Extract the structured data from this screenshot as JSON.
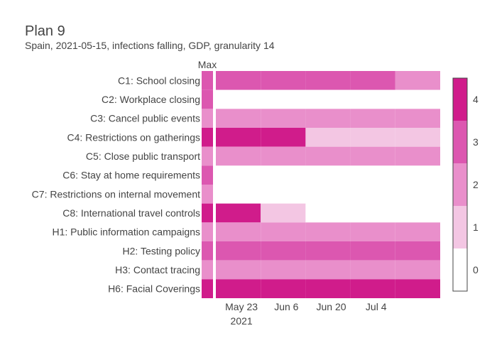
{
  "chart_data": {
    "type": "heatmap",
    "title": "Plan 9",
    "subtitle": "Spain, 2021-05-15, infections falling, GDP, granularity 14",
    "max_column_label": "Max",
    "rows": [
      "C1: School closing",
      "C2: Workplace closing",
      "C3: Cancel public events",
      "C4: Restrictions on gatherings",
      "C5: Close public transport",
      "C6: Stay at home requirements",
      "C7: Restrictions on internal movement",
      "C8: International travel controls",
      "H1: Public information campaigns",
      "H2: Testing policy",
      "H3: Contact tracing",
      "H6: Facial Coverings"
    ],
    "max_values": [
      3,
      3,
      2,
      4,
      2,
      3,
      2,
      4,
      2,
      3,
      2,
      4
    ],
    "periods": [
      {
        "start": "2021-05-15",
        "end": "2021-05-29"
      },
      {
        "start": "2021-05-29",
        "end": "2021-06-12"
      },
      {
        "start": "2021-06-12",
        "end": "2021-06-26"
      },
      {
        "start": "2021-06-26",
        "end": "2021-07-10"
      },
      {
        "start": "2021-07-10",
        "end": "2021-07-24"
      }
    ],
    "values": [
      [
        3,
        3,
        3,
        3,
        2
      ],
      [
        0,
        0,
        0,
        0,
        0
      ],
      [
        2,
        2,
        2,
        2,
        2
      ],
      [
        4,
        4,
        1,
        1,
        1
      ],
      [
        2,
        2,
        2,
        2,
        2
      ],
      [
        0,
        0,
        0,
        0,
        0
      ],
      [
        0,
        0,
        0,
        0,
        0
      ],
      [
        4,
        1,
        0,
        0,
        0
      ],
      [
        2,
        2,
        2,
        2,
        2
      ],
      [
        3,
        3,
        3,
        3,
        3
      ],
      [
        2,
        2,
        2,
        2,
        2
      ],
      [
        4,
        4,
        4,
        4,
        4
      ]
    ],
    "x_ticks": [
      {
        "date": "2021-05-23",
        "label": "May 23",
        "sublabel": "2021"
      },
      {
        "date": "2021-06-06",
        "label": "Jun 6",
        "sublabel": ""
      },
      {
        "date": "2021-06-20",
        "label": "Jun 20",
        "sublabel": ""
      },
      {
        "date": "2021-07-04",
        "label": "Jul 4",
        "sublabel": ""
      }
    ],
    "colorscale": {
      "min": 0,
      "max": 4,
      "colors": {
        "0": "#ffffff",
        "1": "#f3c6e3",
        "2": "#e98fcb",
        "3": "#dc57b0",
        "4": "#d01c8b"
      },
      "ticks": [
        "0",
        "1",
        "2",
        "3",
        "4"
      ]
    },
    "legend_placement": "right",
    "grid": false
  }
}
